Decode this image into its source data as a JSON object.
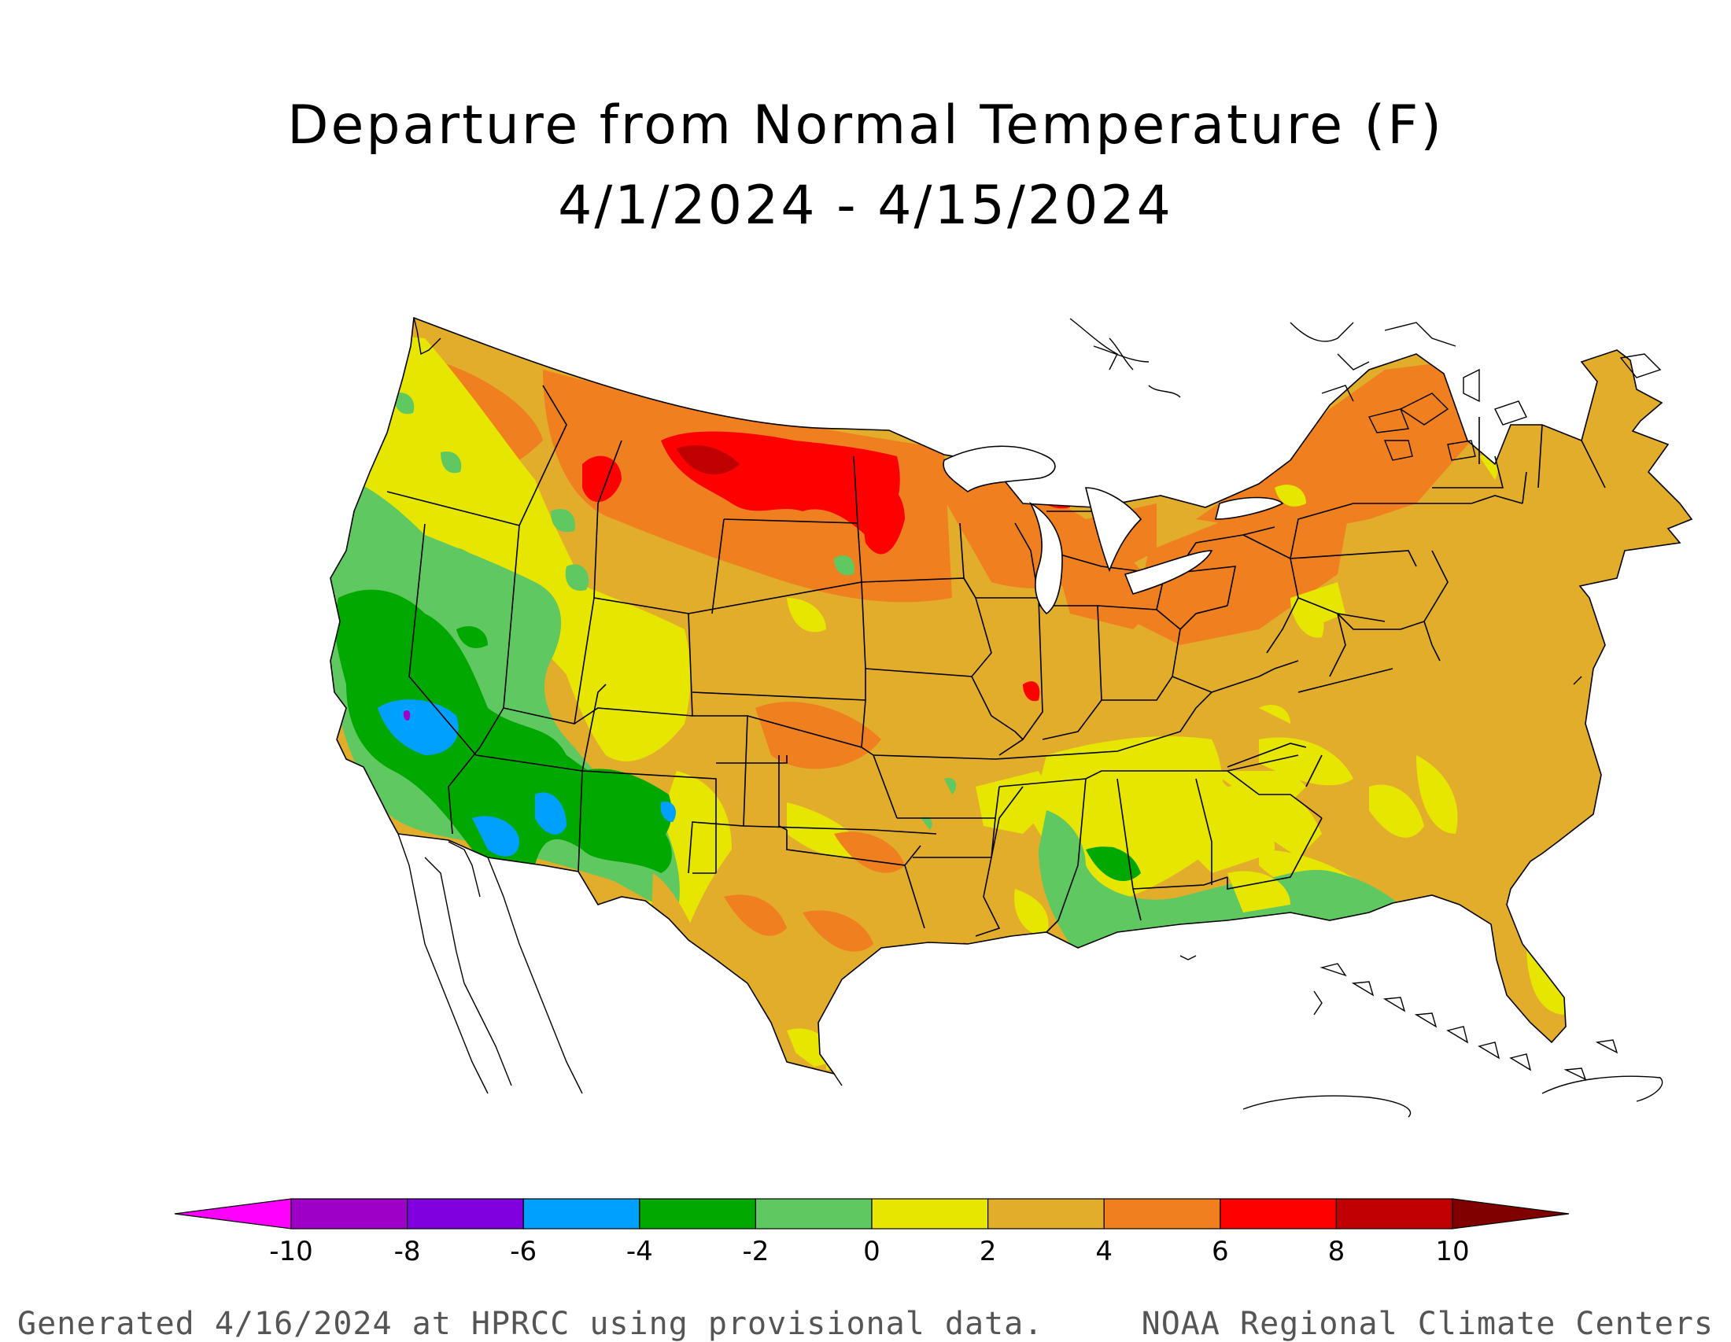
{
  "title": {
    "line1": "Departure from Normal Temperature (F)",
    "line2": "4/1/2024 - 4/15/2024"
  },
  "legend": {
    "ticks": [
      "-10",
      "-8",
      "-6",
      "-4",
      "-2",
      "0",
      "2",
      "4",
      "6",
      "8",
      "10"
    ],
    "colors": [
      "#ff00ff",
      "#9e00c8",
      "#8000e0",
      "#00a0ff",
      "#00a800",
      "#60c860",
      "#e6e600",
      "#e3ad2c",
      "#ef7f1f",
      "#ff0000",
      "#c00000",
      "#800000"
    ]
  },
  "footer": {
    "left": "Generated 4/16/2024 at HPRCC using provisional data.",
    "right": "NOAA Regional Climate Centers"
  }
}
